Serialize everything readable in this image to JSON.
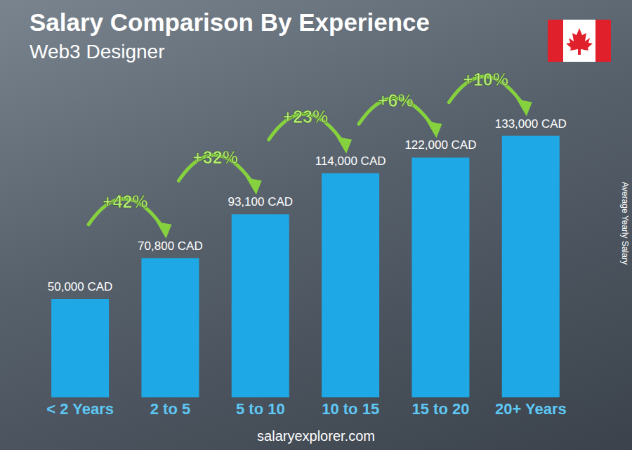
{
  "chart_data": {
    "type": "bar",
    "title": "Salary Comparison By Experience",
    "subtitle": "Web3 Designer",
    "categories": [
      "< 2 Years",
      "2 to 5",
      "5 to 10",
      "10 to 15",
      "15 to 20",
      "20+ Years"
    ],
    "values": [
      50000,
      70800,
      93100,
      114000,
      122000,
      133000
    ],
    "value_labels": [
      "50,000 CAD",
      "70,800 CAD",
      "93,100 CAD",
      "114,000 CAD",
      "122,000 CAD",
      "133,000 CAD"
    ],
    "growth_labels": [
      "+42%",
      "+32%",
      "+23%",
      "+6%",
      "+10%"
    ],
    "y_label": "Average Yearly Salary",
    "source": "salaryexplorer.com",
    "color": "#1ea9e6",
    "ylim": [
      0,
      150000
    ],
    "yticks": [
      0,
      150000
    ],
    "data_labels": true,
    "tick_labels": "x",
    "grid": false
  }
}
